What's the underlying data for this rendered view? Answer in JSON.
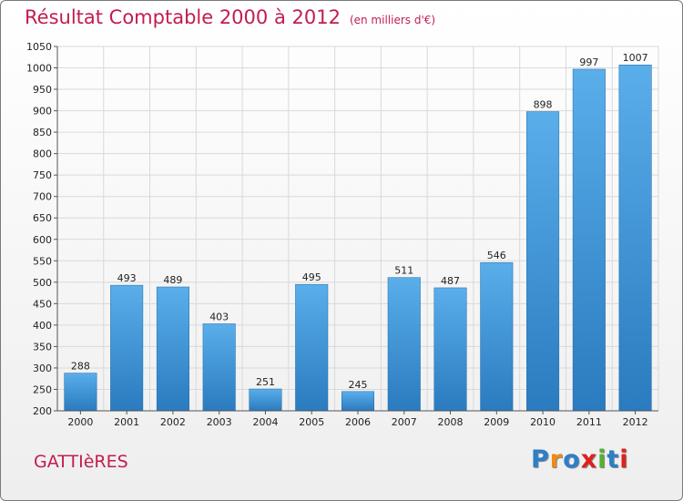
{
  "header": {
    "title": "Résultat Comptable 2000 à 2012",
    "subtitle": "(en milliers d'€)"
  },
  "footer": {
    "place": "GATTIèRES",
    "logo_letters": [
      "P",
      "r",
      "o",
      "x",
      "i",
      "t",
      "i"
    ],
    "logo_colors": [
      "#2c7fc9",
      "#f08a12",
      "#2c7fc9",
      "#e02020",
      "#56b030",
      "#2c7fc9",
      "#e02020"
    ]
  },
  "colors": {
    "bar_top": "#5aaeea",
    "bar_bottom": "#2a7bbf",
    "grid": "#d9d9d9",
    "axis": "#555555",
    "accent": "#c21d4e"
  },
  "chart_data": {
    "type": "bar",
    "title": "Résultat Comptable 2000 à 2012",
    "subtitle": "(en milliers d'€)",
    "categories": [
      "2000",
      "2001",
      "2002",
      "2003",
      "2004",
      "2005",
      "2006",
      "2007",
      "2008",
      "2009",
      "2010",
      "2011",
      "2012"
    ],
    "values": [
      288,
      493,
      489,
      403,
      251,
      495,
      245,
      511,
      487,
      546,
      898,
      997,
      1007
    ],
    "ylim": [
      200,
      1050
    ],
    "yticks": [
      200,
      250,
      300,
      350,
      400,
      450,
      500,
      550,
      600,
      650,
      700,
      750,
      800,
      850,
      900,
      950,
      1000,
      1050
    ],
    "grid": true,
    "data_labels": true
  }
}
